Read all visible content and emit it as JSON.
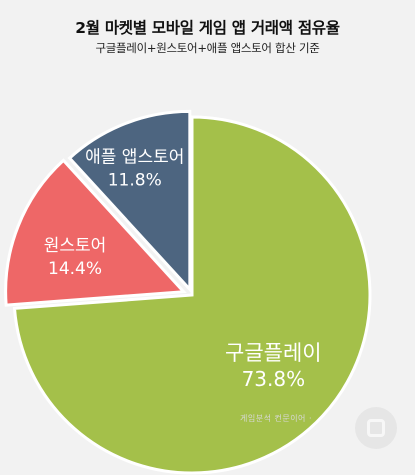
{
  "header": {
    "title": "2월 마켓별 모바일 게임 앱 거래액 점유율",
    "subtitle": "구글플레이+원스토어+애플 앱스토어 합산 기준"
  },
  "watermark": "게임분석 컨문이어 ·",
  "chart_data": {
    "type": "pie",
    "title": "2월 마켓별 모바일 게임 앱 거래액 점유율",
    "subtitle": "구글플레이+원스토어+애플 앱스토어 합산 기준",
    "slices": [
      {
        "label": "구글플레이",
        "value": 73.8,
        "value_label": "73.8%",
        "color": "#a4c04a"
      },
      {
        "label": "원스토어",
        "value": 14.4,
        "value_label": "14.4%",
        "color": "#ee6767"
      },
      {
        "label": "애플 앱스토어",
        "value": 11.8,
        "value_label": "11.8%",
        "color": "#4d6580"
      }
    ],
    "start": "12 o'clock",
    "direction": "clockwise",
    "exploded": [
      "원스토어",
      "애플 앱스토어"
    ]
  }
}
